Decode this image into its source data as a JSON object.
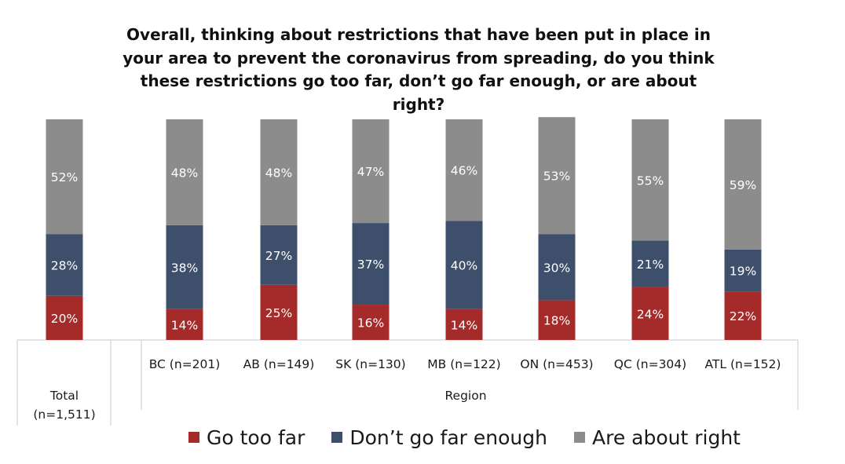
{
  "chart_data": {
    "type": "bar",
    "stacked": true,
    "title": "Overall, thinking about restrictions that have been put in place in your area to prevent the coronavirus from spreading, do you think these restrictions go too far, don’t go far enough, or are about right?",
    "categories": [
      "Total (n=1,511)",
      "BC (n=201)",
      "AB (n=149)",
      "SK (n=130)",
      "MB (n=122)",
      "ON (n=453)",
      "QC (n=304)",
      "ATL (n=152)"
    ],
    "category_lines": [
      [
        "Total",
        "(n=1,511)"
      ],
      [
        "BC (n=201)"
      ],
      [
        "AB (n=149)"
      ],
      [
        "SK (n=130)"
      ],
      [
        "MB (n=122)"
      ],
      [
        "ON (n=453)"
      ],
      [
        "QC (n=304)"
      ],
      [
        "ATL (n=152)"
      ]
    ],
    "group_label": "Region",
    "series": [
      {
        "name": "Go too far",
        "color": "#a52a2a",
        "values": [
          20,
          14,
          25,
          16,
          14,
          18,
          24,
          22
        ]
      },
      {
        "name": "Don’t go far enough",
        "color": "#3e4f6b",
        "values": [
          28,
          38,
          27,
          37,
          40,
          30,
          21,
          19
        ]
      },
      {
        "name": "Are about right",
        "color": "#8c8c8c",
        "values": [
          52,
          48,
          48,
          47,
          46,
          53,
          55,
          59
        ]
      }
    ],
    "value_suffix": "%",
    "ylim": [
      0,
      100
    ],
    "grid": false,
    "legend_position": "bottom"
  }
}
